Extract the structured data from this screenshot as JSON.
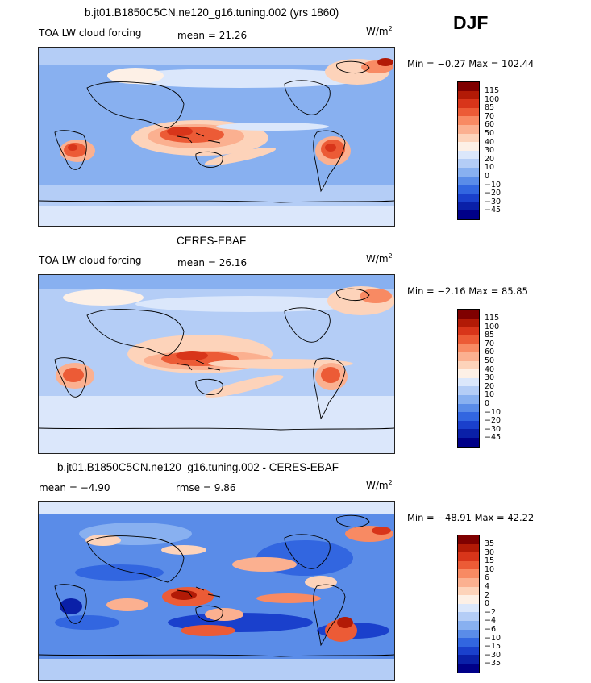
{
  "season": "DJF",
  "panels": [
    {
      "title": "b.jt01.B1850C5CN.ne120_g16.tuning.002 (yrs 1860)",
      "field_label": "TOA LW cloud forcing",
      "stat1_label": "mean =",
      "stat1_value": "21.26",
      "stat2_label": "",
      "stat2_value": "",
      "units_base": "W/m",
      "units_exp": "2",
      "min_label": "Min =",
      "min_value": "−0.27",
      "max_label": "Max =",
      "max_value": "102.44",
      "colorbar": {
        "labels": [
          "115",
          "100",
          "85",
          "70",
          "60",
          "50",
          "40",
          "30",
          "20",
          "10",
          "0",
          "−10",
          "−20",
          "−30",
          "−45"
        ],
        "colors": [
          "#7f0000",
          "#b21a06",
          "#d8351a",
          "#ec5b36",
          "#f88a63",
          "#fbb090",
          "#fdd3ba",
          "#fdf0e6",
          "#dbe7fb",
          "#b4cdf6",
          "#88b0f0",
          "#5a8ce8",
          "#3266e0",
          "#1a40cc",
          "#0a20a8",
          "#000088"
        ]
      }
    },
    {
      "title": "CERES-EBAF",
      "field_label": "TOA LW cloud forcing",
      "stat1_label": "mean =",
      "stat1_value": "26.16",
      "stat2_label": "",
      "stat2_value": "",
      "units_base": "W/m",
      "units_exp": "2",
      "min_label": "Min =",
      "min_value": "−2.16",
      "max_label": "Max =",
      "max_value": "85.85",
      "colorbar": {
        "labels": [
          "115",
          "100",
          "85",
          "70",
          "60",
          "50",
          "40",
          "30",
          "20",
          "10",
          "0",
          "−10",
          "−20",
          "−30",
          "−45"
        ],
        "colors": [
          "#7f0000",
          "#b21a06",
          "#d8351a",
          "#ec5b36",
          "#f88a63",
          "#fbb090",
          "#fdd3ba",
          "#fdf0e6",
          "#dbe7fb",
          "#b4cdf6",
          "#88b0f0",
          "#5a8ce8",
          "#3266e0",
          "#1a40cc",
          "#0a20a8",
          "#000088"
        ]
      }
    },
    {
      "title": "b.jt01.B1850C5CN.ne120_g16.tuning.002 - CERES-EBAF",
      "field_label": "",
      "stat1_label": "mean =",
      "stat1_value": "−4.90",
      "stat2_label": "rmse =",
      "stat2_value": "9.86",
      "units_base": "W/m",
      "units_exp": "2",
      "min_label": "Min =",
      "min_value": "−48.91",
      "max_label": "Max =",
      "max_value": "42.22",
      "colorbar": {
        "labels": [
          "35",
          "30",
          "15",
          "10",
          "6",
          "4",
          "2",
          "0",
          "−2",
          "−4",
          "−6",
          "−10",
          "−15",
          "−30",
          "−35"
        ],
        "colors": [
          "#7f0000",
          "#b21a06",
          "#d8351a",
          "#ec5b36",
          "#f88a63",
          "#fbb090",
          "#fdd3ba",
          "#fdf0e6",
          "#dbe7fb",
          "#b4cdf6",
          "#88b0f0",
          "#5a8ce8",
          "#3266e0",
          "#1a40cc",
          "#0a20a8",
          "#000088"
        ]
      }
    }
  ]
}
